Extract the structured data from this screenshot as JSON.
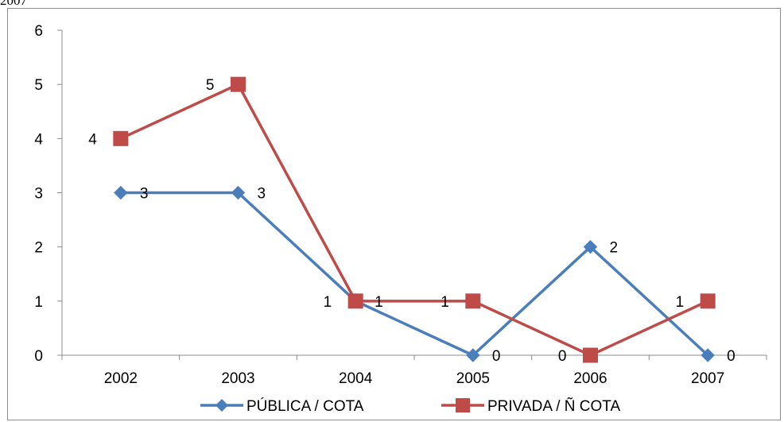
{
  "top_cutoff_text": "2007",
  "chart_data": {
    "type": "line",
    "title": "",
    "xlabel": "",
    "ylabel": "",
    "categories": [
      "2002",
      "2003",
      "2004",
      "2005",
      "2006",
      "2007"
    ],
    "ylim": [
      0,
      6
    ],
    "yticks": [
      "0",
      "1",
      "2",
      "3",
      "4",
      "5",
      "6"
    ],
    "grid": false,
    "legend_position": "bottom",
    "series": [
      {
        "name": "PÚBLICA / COTA",
        "values": [
          3,
          3,
          1,
          0,
          2,
          0
        ],
        "color": "#4a7ebb",
        "marker": "diamond",
        "labels": [
          "3",
          "3",
          "1",
          "0",
          "2",
          "0"
        ]
      },
      {
        "name": "PRIVADA / Ñ COTA",
        "values": [
          4,
          5,
          1,
          1,
          0,
          1
        ],
        "color": "#be4b48",
        "marker": "square",
        "labels": [
          "4",
          "5",
          "1",
          "1",
          "0",
          "1"
        ]
      }
    ]
  }
}
